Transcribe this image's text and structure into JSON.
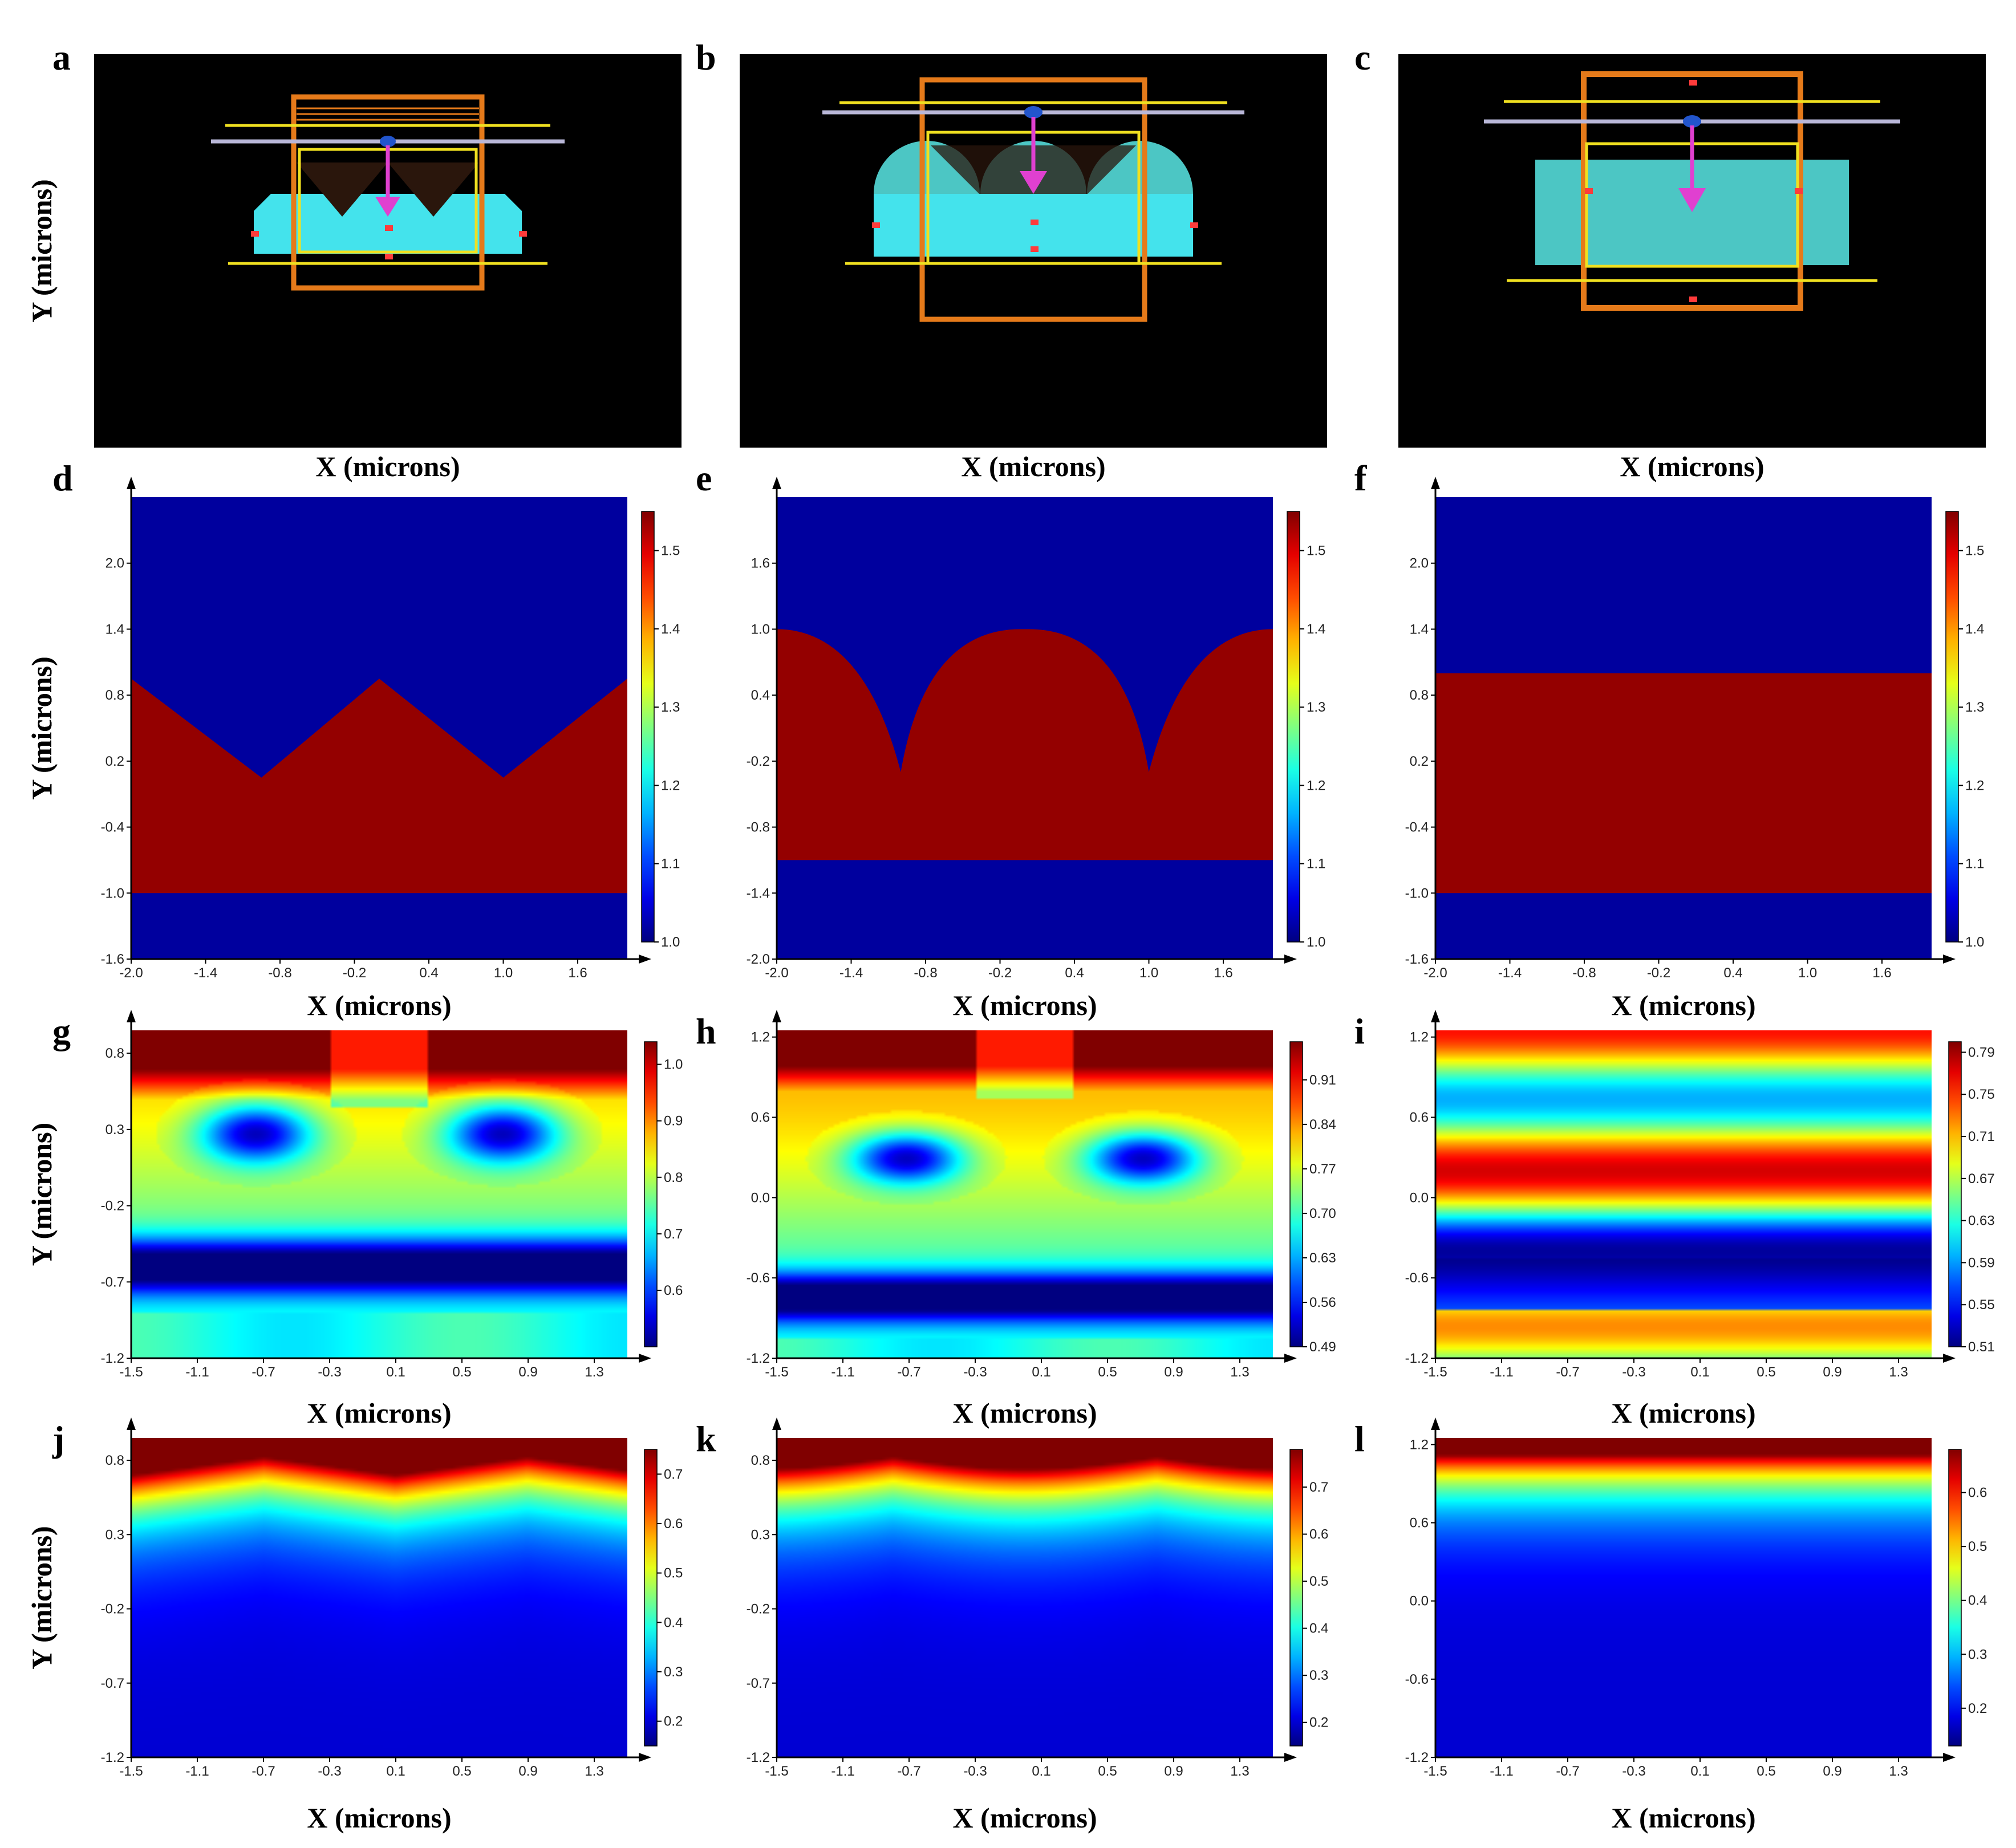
{
  "figure": {
    "x_axis_title": "X (microns)",
    "y_axis_title": "Y (microns)"
  },
  "panels": [
    {
      "id": "a",
      "label": "a",
      "kind": "layout",
      "geometry": "triangular"
    },
    {
      "id": "b",
      "label": "b",
      "kind": "layout",
      "geometry": "semicircular"
    },
    {
      "id": "c",
      "label": "c",
      "kind": "layout",
      "geometry": "flat"
    },
    {
      "id": "d",
      "label": "d",
      "kind": "index",
      "geometry": "triangular"
    },
    {
      "id": "e",
      "label": "e",
      "kind": "index",
      "geometry": "semicircular"
    },
    {
      "id": "f",
      "label": "f",
      "kind": "index",
      "geometry": "flat"
    },
    {
      "id": "g",
      "label": "g",
      "kind": "field",
      "geometry": "triangular"
    },
    {
      "id": "h",
      "label": "h",
      "kind": "field",
      "geometry": "semicircular"
    },
    {
      "id": "i",
      "label": "i",
      "kind": "field",
      "geometry": "flat"
    },
    {
      "id": "j",
      "label": "j",
      "kind": "field_top",
      "geometry": "triangular"
    },
    {
      "id": "k",
      "label": "k",
      "kind": "field_top",
      "geometry": "semicircular"
    },
    {
      "id": "l",
      "label": "l",
      "kind": "field_top",
      "geometry": "flat"
    }
  ],
  "layout_colors": {
    "background": "#000000",
    "substrate": "#44e3ec",
    "substrate_dim": "#4cc6c4",
    "air_gap": "#2a160c",
    "monitor": "#e57a1a",
    "yellow_line": "#f0e020",
    "source_line": "#b9b7d8",
    "source_dot": "#2255cc",
    "arrow": "#e040d0",
    "marker": "#ff3b3b"
  },
  "chart_data": [
    {
      "panel": "d",
      "type": "heatmap",
      "title": "",
      "xlabel": "X (microns)",
      "ylabel": "Y (microns)",
      "xlim": [
        -2.0,
        2.0
      ],
      "ylim": [
        -1.6,
        2.6
      ],
      "xticks": [
        "-2.0",
        "-1.4",
        "-0.8",
        "-0.2",
        "0.4",
        "1.0",
        "1.6"
      ],
      "yticks": [
        "-1.6",
        "-1.0",
        "-0.4",
        "0.2",
        "0.8",
        "1.4",
        "2.0"
      ],
      "colorbar_ticks": [
        "1.0",
        "1.1",
        "1.2",
        "1.3",
        "1.4",
        "1.5"
      ],
      "colorbar_range": [
        1.0,
        1.55
      ]
    },
    {
      "panel": "e",
      "type": "heatmap",
      "title": "",
      "xlabel": "X (microns)",
      "ylabel": "Y (microns)",
      "xlim": [
        -2.0,
        2.0
      ],
      "ylim": [
        -2.0,
        2.2
      ],
      "xticks": [
        "-2.0",
        "-1.4",
        "-0.8",
        "-0.2",
        "0.4",
        "1.0",
        "1.6"
      ],
      "yticks": [
        "-2.0",
        "-1.4",
        "-0.8",
        "-0.2",
        "0.4",
        "1.0",
        "1.6"
      ],
      "colorbar_ticks": [
        "1.0",
        "1.1",
        "1.2",
        "1.3",
        "1.4",
        "1.5"
      ],
      "colorbar_range": [
        1.0,
        1.55
      ]
    },
    {
      "panel": "f",
      "type": "heatmap",
      "title": "",
      "xlabel": "X (microns)",
      "ylabel": "Y (microns)",
      "xlim": [
        -2.0,
        2.0
      ],
      "ylim": [
        -1.6,
        2.6
      ],
      "xticks": [
        "-2.0",
        "-1.4",
        "-0.8",
        "-0.2",
        "0.4",
        "1.0",
        "1.6"
      ],
      "yticks": [
        "-1.6",
        "-1.0",
        "-0.4",
        "0.2",
        "0.8",
        "1.4",
        "2.0"
      ],
      "colorbar_ticks": [
        "1.0",
        "1.1",
        "1.2",
        "1.3",
        "1.4",
        "1.5"
      ],
      "colorbar_range": [
        1.0,
        1.55
      ]
    },
    {
      "panel": "g",
      "type": "heatmap",
      "title": "",
      "xlabel": "X (microns)",
      "ylabel": "Y (microns)",
      "xlim": [
        -1.5,
        1.5
      ],
      "ylim": [
        -1.2,
        0.95
      ],
      "xticks": [
        "-1.5",
        "-1.1",
        "-0.7",
        "-0.3",
        "0.1",
        "0.5",
        "0.9",
        "1.3"
      ],
      "yticks": [
        "-1.2",
        "-0.7",
        "-0.2",
        "0.3",
        "0.8"
      ],
      "colorbar_ticks": [
        "0.6",
        "0.7",
        "0.8",
        "0.9",
        "1.0"
      ],
      "colorbar_range": [
        0.5,
        1.04
      ]
    },
    {
      "panel": "h",
      "type": "heatmap",
      "title": "",
      "xlabel": "X (microns)",
      "ylabel": "Y (microns)",
      "xlim": [
        -1.5,
        1.5
      ],
      "ylim": [
        -1.2,
        1.25
      ],
      "xticks": [
        "-1.5",
        "-1.1",
        "-0.7",
        "-0.3",
        "0.1",
        "0.5",
        "0.9",
        "1.3"
      ],
      "yticks": [
        "-1.2",
        "-0.6",
        "0.0",
        "0.6",
        "1.2"
      ],
      "colorbar_ticks": [
        "0.49",
        "0.56",
        "0.63",
        "0.70",
        "0.77",
        "0.84",
        "0.91"
      ],
      "colorbar_range": [
        0.49,
        0.97
      ]
    },
    {
      "panel": "i",
      "type": "heatmap",
      "title": "",
      "xlabel": "X (microns)",
      "ylabel": "Y (microns)",
      "xlim": [
        -1.5,
        1.5
      ],
      "ylim": [
        -1.2,
        1.25
      ],
      "xticks": [
        "-1.5",
        "-1.1",
        "-0.7",
        "-0.3",
        "0.1",
        "0.5",
        "0.9",
        "1.3"
      ],
      "yticks": [
        "-1.2",
        "-0.6",
        "0.0",
        "0.6",
        "1.2"
      ],
      "colorbar_ticks": [
        "0.51",
        "0.55",
        "0.59",
        "0.63",
        "0.67",
        "0.71",
        "0.75",
        "0.79"
      ],
      "colorbar_range": [
        0.51,
        0.8
      ]
    },
    {
      "panel": "j",
      "type": "heatmap",
      "title": "",
      "xlabel": "X (microns)",
      "ylabel": "Y (microns)",
      "xlim": [
        -1.5,
        1.5
      ],
      "ylim": [
        -1.2,
        0.95
      ],
      "xticks": [
        "-1.5",
        "-1.1",
        "-0.7",
        "-0.3",
        "0.1",
        "0.5",
        "0.9",
        "1.3"
      ],
      "yticks": [
        "-1.2",
        "-0.7",
        "-0.2",
        "0.3",
        "0.8"
      ],
      "colorbar_ticks": [
        "0.2",
        "0.3",
        "0.4",
        "0.5",
        "0.6",
        "0.7"
      ],
      "colorbar_range": [
        0.15,
        0.75
      ]
    },
    {
      "panel": "k",
      "type": "heatmap",
      "title": "",
      "xlabel": "X (microns)",
      "ylabel": "Y (microns)",
      "xlim": [
        -1.5,
        1.5
      ],
      "ylim": [
        -1.2,
        0.95
      ],
      "xticks": [
        "-1.5",
        "-1.1",
        "-0.7",
        "-0.3",
        "0.1",
        "0.5",
        "0.9",
        "1.3"
      ],
      "yticks": [
        "-1.2",
        "-0.7",
        "-0.2",
        "0.3",
        "0.8"
      ],
      "colorbar_ticks": [
        "0.2",
        "0.3",
        "0.4",
        "0.5",
        "0.6",
        "0.7"
      ],
      "colorbar_range": [
        0.15,
        0.78
      ]
    },
    {
      "panel": "l",
      "type": "heatmap",
      "title": "",
      "xlabel": "X (microns)",
      "ylabel": "Y (microns)",
      "xlim": [
        -1.5,
        1.5
      ],
      "ylim": [
        -1.2,
        1.25
      ],
      "xticks": [
        "-1.5",
        "-1.1",
        "-0.7",
        "-0.3",
        "0.1",
        "0.5",
        "0.9",
        "1.3"
      ],
      "yticks": [
        "-1.2",
        "-0.6",
        "0.0",
        "0.6",
        "1.2"
      ],
      "colorbar_ticks": [
        "0.2",
        "0.3",
        "0.4",
        "0.5",
        "0.6"
      ],
      "colorbar_range": [
        0.13,
        0.68
      ]
    }
  ]
}
